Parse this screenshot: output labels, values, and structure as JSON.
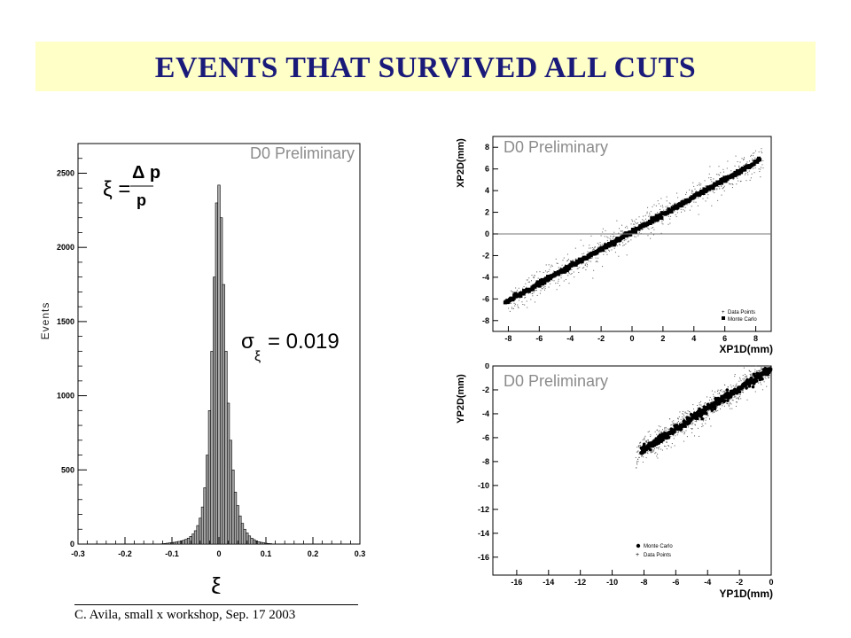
{
  "slide": {
    "title": "EVENTS  THAT SURVIVED ALL CUTS",
    "footer": "C. Avila, small x workshop, Sep. 17 2003",
    "colors": {
      "title_band": "#FFFFC8",
      "title_text": "#1a1a7a"
    }
  },
  "chart_data": [
    {
      "type": "histogram",
      "watermark": "D0 Preliminary",
      "xlabel": "ξ",
      "ylabel": "Events",
      "xlim": [
        -0.3,
        0.3
      ],
      "ylim": [
        0,
        2700
      ],
      "x_ticks": [
        "-0.3",
        "-0.2",
        "-0.1",
        "0",
        "0.1",
        "0.2",
        "0.3"
      ],
      "y_ticks": [
        "0",
        "500",
        "1000",
        "1500",
        "2000",
        "2500"
      ],
      "formula": {
        "lhs": "ξ =",
        "numerator": "Δ p",
        "denominator": "p"
      },
      "annotation": {
        "symbol": "σ",
        "subscript": "ξ",
        "text": "= 0.019"
      },
      "bin_width": 0.005,
      "bins": [
        {
          "x": -0.12,
          "y": 2
        },
        {
          "x": -0.115,
          "y": 4
        },
        {
          "x": -0.11,
          "y": 6
        },
        {
          "x": -0.105,
          "y": 8
        },
        {
          "x": -0.1,
          "y": 10
        },
        {
          "x": -0.095,
          "y": 12
        },
        {
          "x": -0.09,
          "y": 15
        },
        {
          "x": -0.085,
          "y": 18
        },
        {
          "x": -0.08,
          "y": 22
        },
        {
          "x": -0.075,
          "y": 26
        },
        {
          "x": -0.07,
          "y": 32
        },
        {
          "x": -0.065,
          "y": 40
        },
        {
          "x": -0.06,
          "y": 52
        },
        {
          "x": -0.055,
          "y": 68
        },
        {
          "x": -0.05,
          "y": 90
        },
        {
          "x": -0.045,
          "y": 125
        },
        {
          "x": -0.04,
          "y": 175
        },
        {
          "x": -0.035,
          "y": 250
        },
        {
          "x": -0.03,
          "y": 380
        },
        {
          "x": -0.025,
          "y": 600
        },
        {
          "x": -0.02,
          "y": 900
        },
        {
          "x": -0.015,
          "y": 1300
        },
        {
          "x": -0.01,
          "y": 1800
        },
        {
          "x": -0.005,
          "y": 2300
        },
        {
          "x": 0.0,
          "y": 2420
        },
        {
          "x": 0.005,
          "y": 2200
        },
        {
          "x": 0.01,
          "y": 1750
        },
        {
          "x": 0.015,
          "y": 1300
        },
        {
          "x": 0.02,
          "y": 950
        },
        {
          "x": 0.025,
          "y": 700
        },
        {
          "x": 0.03,
          "y": 500
        },
        {
          "x": 0.035,
          "y": 350
        },
        {
          "x": 0.04,
          "y": 260
        },
        {
          "x": 0.045,
          "y": 190
        },
        {
          "x": 0.05,
          "y": 140
        },
        {
          "x": 0.055,
          "y": 100
        },
        {
          "x": 0.06,
          "y": 75
        },
        {
          "x": 0.065,
          "y": 55
        },
        {
          "x": 0.07,
          "y": 40
        },
        {
          "x": 0.075,
          "y": 30
        },
        {
          "x": 0.08,
          "y": 22
        },
        {
          "x": 0.085,
          "y": 16
        },
        {
          "x": 0.09,
          "y": 12
        },
        {
          "x": 0.095,
          "y": 9
        },
        {
          "x": 0.1,
          "y": 6
        },
        {
          "x": 0.105,
          "y": 4
        },
        {
          "x": 0.11,
          "y": 3
        }
      ]
    },
    {
      "type": "scatter",
      "watermark": "D0 Preliminary",
      "xlabel": "XP1D(mm)",
      "ylabel": "XP2D(mm)",
      "xlim": [
        -9,
        9
      ],
      "ylim": [
        -9,
        9
      ],
      "x_ticks": [
        "-8",
        "-6",
        "-4",
        "-2",
        "0",
        "2",
        "4",
        "6",
        "8"
      ],
      "y_ticks": [
        "-8",
        "-6",
        "-4",
        "-2",
        "0",
        "2",
        "4",
        "6",
        "8"
      ],
      "legend": {
        "position": "bottom-right",
        "entries": [
          "Data Points",
          "Monte Carlo"
        ]
      },
      "series": [
        {
          "name": "Data Points",
          "style": "cross",
          "x_range": [
            -8,
            8.5
          ],
          "band_halfwidth": 1.3,
          "slope": 0.8,
          "intercept": 0.2
        },
        {
          "name": "Monte Carlo",
          "style": "square",
          "x_range": [
            -8.2,
            8.3
          ],
          "band_halfwidth": 0.2,
          "slope": 0.8,
          "intercept": 0.2
        }
      ],
      "reference_line": {
        "y": 0
      }
    },
    {
      "type": "scatter",
      "watermark": "D0 Preliminary",
      "xlabel": "YP1D(mm)",
      "ylabel": "YP2D(mm)",
      "xlim": [
        -17.5,
        0
      ],
      "ylim": [
        -17.5,
        0
      ],
      "x_ticks": [
        "-16",
        "-14",
        "-12",
        "-10",
        "-8",
        "-6",
        "-4",
        "-2",
        "0"
      ],
      "y_ticks": [
        "-16",
        "-14",
        "-12",
        "-10",
        "-8",
        "-6",
        "-4",
        "-2",
        "0"
      ],
      "legend": {
        "position": "bottom-left",
        "entries": [
          "Monte Carlo",
          "Data Points"
        ]
      },
      "series": [
        {
          "name": "Data Points",
          "style": "cross",
          "x_range": [
            -8.5,
            0
          ],
          "band_halfwidth": 1.1,
          "slope": 0.85,
          "intercept": -0.2
        },
        {
          "name": "Monte Carlo",
          "style": "circle",
          "x_range": [
            -8.2,
            0
          ],
          "band_halfwidth": 0.35,
          "slope": 0.85,
          "intercept": -0.2
        }
      ]
    }
  ]
}
